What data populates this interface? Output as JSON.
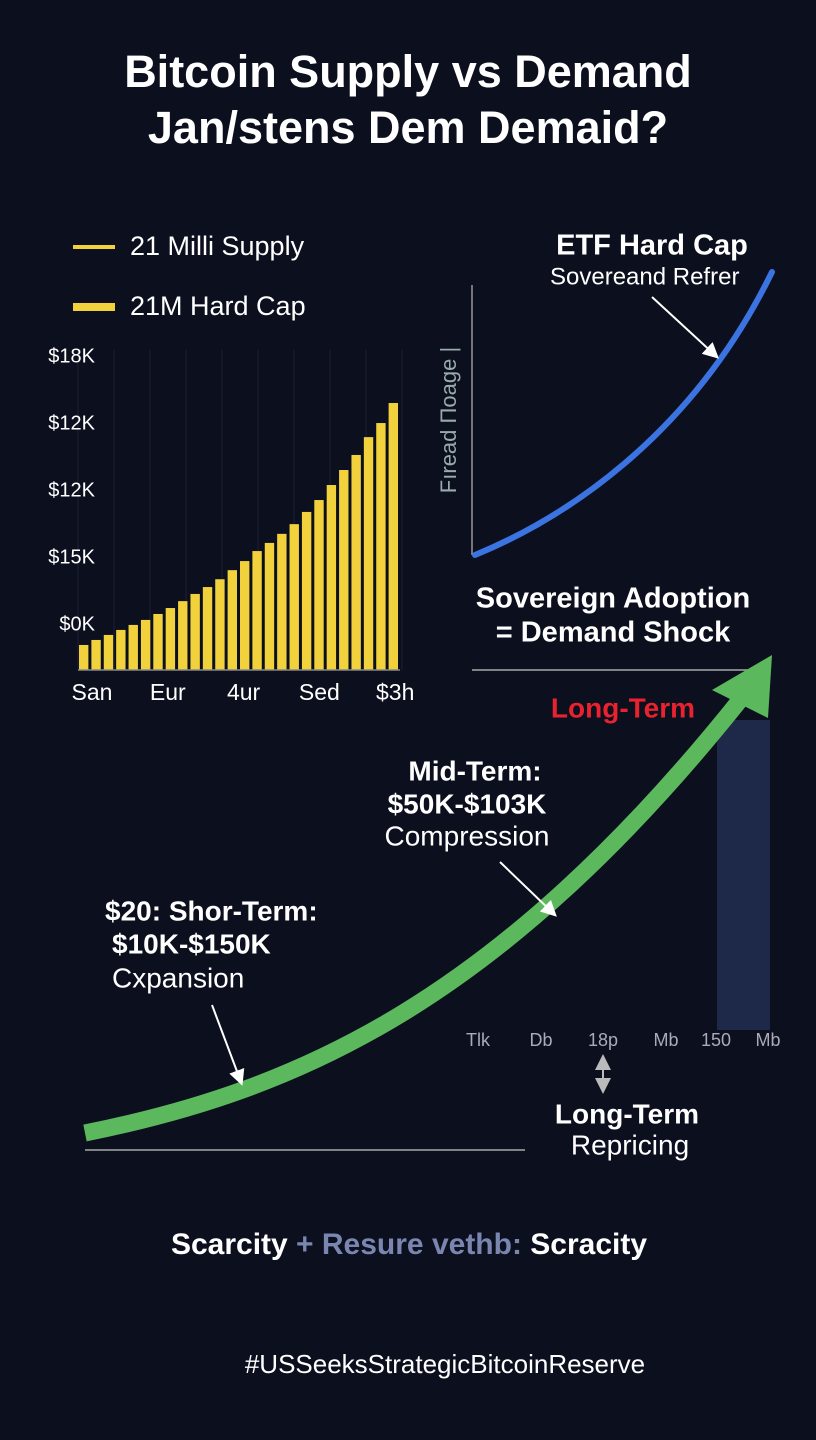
{
  "header": {
    "title_lines": [
      "Bitcoin Supply vs Demand",
      "Jan/stens Dem Demaid?"
    ]
  },
  "legend": {
    "items": [
      "21 Milli Supply",
      "21M Hard Cap"
    ]
  },
  "bar_panel": {
    "y_labels": [
      "$18K",
      "$12K",
      "$12K",
      "$15K",
      "$0K"
    ],
    "x_labels": [
      "San",
      "Eur",
      "4ur",
      "Sed",
      "$3h"
    ],
    "bar_color": "#f2d23c",
    "ylim": [
      0,
      100
    ],
    "values": [
      8,
      9.6,
      11.2,
      12.8,
      14.4,
      16,
      17.9,
      19.8,
      22,
      24.3,
      26.5,
      29,
      31.9,
      34.8,
      38,
      40.6,
      43.5,
      46.6,
      50.5,
      54.3,
      59.1,
      63.9,
      68.7,
      74.4,
      78.9,
      85.3
    ]
  },
  "etf_panel": {
    "axis_label": "Fıread Πoage |",
    "title": "ETF Hard Cap",
    "subtitle": "Sovereand Refrer",
    "curve_color": "#3b73e0"
  },
  "adoption": {
    "lines": [
      "Sovereign Adoption",
      "= Demand Shock"
    ]
  },
  "long_term_label": "Long-Term",
  "mid_term": {
    "lines": [
      "Mid-Term:",
      "$50K-$103K",
      "Compression"
    ]
  },
  "short_term": {
    "lines": [
      "$20: Shor-Term:",
      "$10K-$150K",
      "Cxpansion"
    ]
  },
  "x_labels_lower": [
    "Tlk",
    "Db",
    "18p",
    "Mb",
    "150",
    "Mb"
  ],
  "repricing": {
    "lines": [
      "Long-Term",
      "Repricing"
    ]
  },
  "footer": {
    "parts": [
      "Scarcity",
      " + Resure vethb: ",
      "Scracity"
    ],
    "hashtag": "#USSeeksStrategicBitcoinReserve"
  }
}
